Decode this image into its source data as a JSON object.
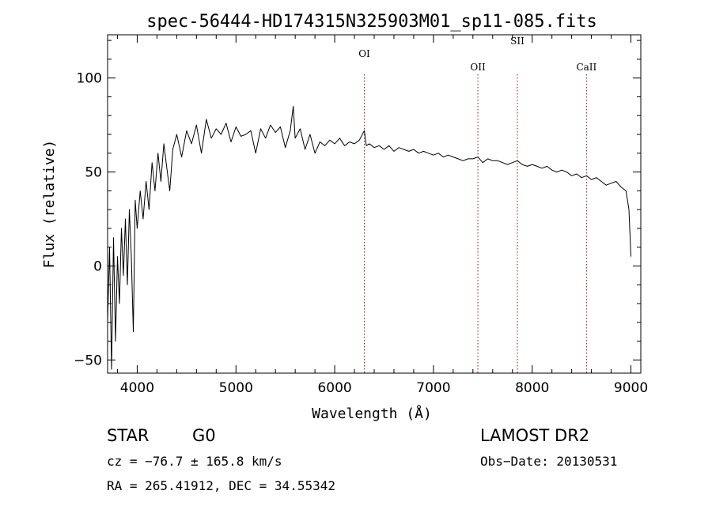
{
  "chart_data": {
    "type": "line",
    "title": "spec-56444-HD174315N325903M01_sp11-085.fits",
    "xlabel": "Wavelength (Å)",
    "ylabel": "Flux (relative)",
    "xlim": [
      3700,
      9100
    ],
    "ylim": [
      -57,
      123
    ],
    "xticks": [
      4000,
      5000,
      6000,
      7000,
      8000,
      9000
    ],
    "yticks": [
      -50,
      0,
      50,
      100
    ],
    "series": [
      {
        "x": [
          3700,
          3720,
          3740,
          3760,
          3780,
          3800,
          3820,
          3840,
          3860,
          3880,
          3900,
          3920,
          3940,
          3960,
          3980,
          4000,
          4030,
          4060,
          4090,
          4120,
          4150,
          4180,
          4210,
          4240,
          4270,
          4300,
          4330,
          4360,
          4400,
          4450,
          4500,
          4550,
          4600,
          4650,
          4700,
          4750,
          4800,
          4850,
          4900,
          4950,
          5000,
          5050,
          5100,
          5150,
          5200,
          5250,
          5300,
          5350,
          5400,
          5450,
          5500,
          5550,
          5580,
          5600,
          5650,
          5700,
          5750,
          5800,
          5850,
          5900,
          5950,
          6000,
          6050,
          6100,
          6150,
          6200,
          6250,
          6300,
          6320,
          6350,
          6400,
          6450,
          6500,
          6550,
          6600,
          6650,
          6700,
          6750,
          6800,
          6850,
          6900,
          6950,
          7000,
          7050,
          7100,
          7150,
          7200,
          7250,
          7300,
          7350,
          7400,
          7450,
          7500,
          7550,
          7600,
          7650,
          7700,
          7750,
          7800,
          7850,
          7900,
          7950,
          8000,
          8050,
          8100,
          8150,
          8200,
          8250,
          8300,
          8350,
          8400,
          8450,
          8500,
          8550,
          8600,
          8650,
          8700,
          8750,
          8800,
          8850,
          8900,
          8950,
          8980,
          9000
        ],
        "y": [
          -30,
          10,
          -55,
          15,
          -40,
          5,
          -20,
          20,
          -5,
          25,
          -10,
          30,
          5,
          -35,
          35,
          20,
          40,
          25,
          45,
          30,
          55,
          40,
          60,
          45,
          65,
          52,
          40,
          62,
          70,
          58,
          72,
          65,
          75,
          60,
          78,
          68,
          73,
          70,
          76,
          66,
          74,
          69,
          70,
          72,
          60,
          73,
          68,
          75,
          71,
          74,
          63,
          72,
          85,
          68,
          73,
          62,
          70,
          60,
          66,
          64,
          67,
          65,
          68,
          64,
          66,
          65,
          67,
          72,
          64,
          65,
          63,
          64,
          62,
          64,
          61,
          63,
          62,
          61,
          62,
          60,
          61,
          60,
          59,
          60,
          58,
          59,
          58,
          57,
          56,
          57,
          57,
          58,
          55,
          57,
          56,
          56,
          55,
          54,
          55,
          56,
          54,
          53,
          54,
          53,
          52,
          53,
          51,
          50,
          51,
          50,
          48,
          49,
          47,
          48,
          46,
          47,
          45,
          43,
          44,
          45,
          42,
          40,
          30,
          5
        ]
      }
    ],
    "spectral_lines": [
      {
        "label": "OI",
        "x": 6300
      },
      {
        "label": "OII",
        "x": 7450
      },
      {
        "label": "SII",
        "x": 7850
      },
      {
        "label": "CaII",
        "x": 8550
      }
    ],
    "grid": false
  },
  "info": {
    "class_label": "STAR",
    "subclass": "G0",
    "survey": "LAMOST DR2",
    "redshift_line": "cz = −76.7 ± 165.8 km/s",
    "obs_date_line": "Obs−Date: 20130531",
    "coords_line": "RA = 265.41912, DEC =  34.55342"
  },
  "colors": {
    "spectrum": "#000000",
    "line_marker": "#a01010"
  }
}
